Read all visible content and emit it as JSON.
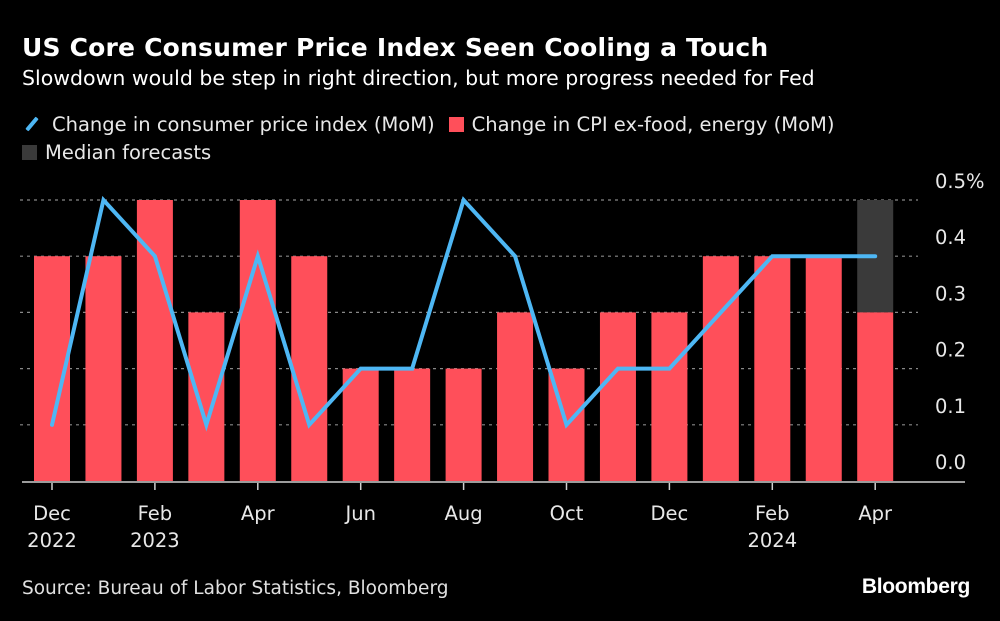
{
  "header": {
    "title": "US Core Consumer Price Index Seen Cooling a Touch",
    "subtitle": "Slowdown would be step in right direction, but more progress needed for Fed"
  },
  "footer": {
    "source": "Source: Bureau of Labor Statistics, Bloomberg",
    "brand": "Bloomberg"
  },
  "colors": {
    "background": "#000000",
    "line": "#4eb7f4",
    "bars": "#ff4f5a",
    "forecast": "#3a3a3a",
    "grid": "#888888",
    "text": "#e8e8e8"
  },
  "chart_data": {
    "type": "bar",
    "title": "US Core Consumer Price Index Seen Cooling a Touch",
    "subtitle": "Slowdown would be step in right direction, but more progress needed for Fed",
    "xlabel": "",
    "ylabel": "",
    "ylim": [
      0,
      0.5
    ],
    "y_ticks": [
      "0.0",
      "0.1",
      "0.2",
      "0.3",
      "0.4",
      "0.5%"
    ],
    "y_axis_side": "right",
    "grid": true,
    "legend_placement": "top-left",
    "categories": [
      "Dec 2022",
      "Jan 2023",
      "Feb 2023",
      "Mar 2023",
      "Apr 2023",
      "May 2023",
      "Jun 2023",
      "Jul 2023",
      "Aug 2023",
      "Sep 2023",
      "Oct 2023",
      "Nov 2023",
      "Dec 2023",
      "Jan 2024",
      "Feb 2024",
      "Mar 2024",
      "Apr 2024"
    ],
    "x_tick_labels": [
      {
        "index": 0,
        "line1": "Dec",
        "line2": "2022"
      },
      {
        "index": 2,
        "line1": "Feb",
        "line2": "2023"
      },
      {
        "index": 4,
        "line1": "Apr",
        "line2": ""
      },
      {
        "index": 6,
        "line1": "Jun",
        "line2": ""
      },
      {
        "index": 8,
        "line1": "Aug",
        "line2": ""
      },
      {
        "index": 10,
        "line1": "Oct",
        "line2": ""
      },
      {
        "index": 12,
        "line1": "Dec",
        "line2": ""
      },
      {
        "index": 14,
        "line1": "Feb",
        "line2": "2024"
      },
      {
        "index": 16,
        "line1": "Apr",
        "line2": ""
      }
    ],
    "series": [
      {
        "name": "Change in consumer price index (MoM)",
        "type": "line",
        "values": [
          0.1,
          0.5,
          0.4,
          0.1,
          0.4,
          0.1,
          0.2,
          0.2,
          0.5,
          0.4,
          0.1,
          0.2,
          0.2,
          0.3,
          0.4,
          0.4,
          0.4
        ]
      },
      {
        "name": "Change in CPI ex-food, energy (MoM)",
        "type": "bar",
        "values": [
          0.4,
          0.4,
          0.5,
          0.3,
          0.5,
          0.4,
          0.2,
          0.2,
          0.2,
          0.3,
          0.2,
          0.3,
          0.3,
          0.4,
          0.4,
          0.4,
          0.3
        ]
      },
      {
        "name": "Median forecasts",
        "type": "bar-overlay",
        "category": "Apr 2024",
        "range": [
          0.3,
          0.5
        ]
      }
    ]
  },
  "legend": [
    {
      "label": "Change in consumer price index (MoM)",
      "icon": "line-swatch-icon"
    },
    {
      "label": "Change in CPI ex-food, energy (MoM)",
      "icon": "red-square-icon"
    },
    {
      "label": "Median forecasts",
      "icon": "gray-square-icon"
    }
  ]
}
